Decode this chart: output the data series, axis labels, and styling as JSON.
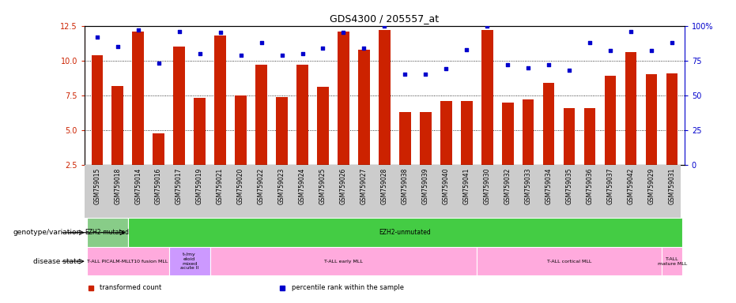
{
  "title": "GDS4300 / 205557_at",
  "samples": [
    "GSM759015",
    "GSM759018",
    "GSM759014",
    "GSM759016",
    "GSM759017",
    "GSM759019",
    "GSM759021",
    "GSM759020",
    "GSM759022",
    "GSM759023",
    "GSM759024",
    "GSM759025",
    "GSM759026",
    "GSM759027",
    "GSM759028",
    "GSM759038",
    "GSM759039",
    "GSM759040",
    "GSM759041",
    "GSM759030",
    "GSM759032",
    "GSM759033",
    "GSM759034",
    "GSM759035",
    "GSM759036",
    "GSM759037",
    "GSM759042",
    "GSM759029",
    "GSM759031"
  ],
  "bar_values": [
    10.4,
    8.2,
    12.1,
    4.8,
    11.0,
    7.3,
    11.8,
    7.5,
    9.7,
    7.4,
    9.7,
    8.1,
    12.1,
    10.8,
    12.2,
    6.3,
    6.3,
    7.1,
    7.1,
    12.2,
    7.0,
    7.2,
    8.4,
    6.6,
    6.6,
    8.9,
    10.6,
    9.0,
    9.1
  ],
  "dot_values": [
    92,
    85,
    97,
    73,
    96,
    80,
    95,
    79,
    88,
    79,
    80,
    84,
    95,
    84,
    100,
    65,
    65,
    69,
    83,
    100,
    72,
    70,
    72,
    68,
    88,
    82,
    96,
    82,
    88
  ],
  "bar_color": "#cc2200",
  "dot_color": "#0000cc",
  "ylim_left": [
    2.5,
    12.5
  ],
  "ylim_right": [
    0,
    100
  ],
  "yticks_left": [
    2.5,
    5.0,
    7.5,
    10.0,
    12.5
  ],
  "yticks_right": [
    0,
    25,
    50,
    75,
    100
  ],
  "ytick_right_labels": [
    "0",
    "25",
    "50",
    "75",
    "100%"
  ],
  "grid_lines": [
    5.0,
    7.5,
    10.0
  ],
  "genotype_label": "genotype/variation",
  "disease_label": "disease state",
  "genotype_groups": [
    {
      "label": "EZH2-mutated",
      "start": 0,
      "end": 2,
      "color": "#88cc88"
    },
    {
      "label": "EZH2-unmutated",
      "start": 2,
      "end": 29,
      "color": "#44cc44"
    }
  ],
  "disease_groups": [
    {
      "label": "T-ALL PICALM-MLLT10 fusion MLL",
      "start": 0,
      "end": 4,
      "color": "#ffaadd"
    },
    {
      "label": "t-/my\neloid\nmixed\nacute ll",
      "start": 4,
      "end": 6,
      "color": "#cc99ff"
    },
    {
      "label": "T-ALL early MLL",
      "start": 6,
      "end": 19,
      "color": "#ffaadd"
    },
    {
      "label": "T-ALL cortical MLL",
      "start": 19,
      "end": 28,
      "color": "#ffaadd"
    },
    {
      "label": "T-ALL\nmature MLL",
      "start": 28,
      "end": 29,
      "color": "#ffaadd"
    }
  ],
  "legend_items": [
    {
      "label": "transformed count",
      "color": "#cc2200"
    },
    {
      "label": "percentile rank within the sample",
      "color": "#0000cc"
    }
  ],
  "xtick_bg_color": "#cccccc",
  "fig_width": 9.31,
  "fig_height": 3.84,
  "fig_dpi": 100
}
